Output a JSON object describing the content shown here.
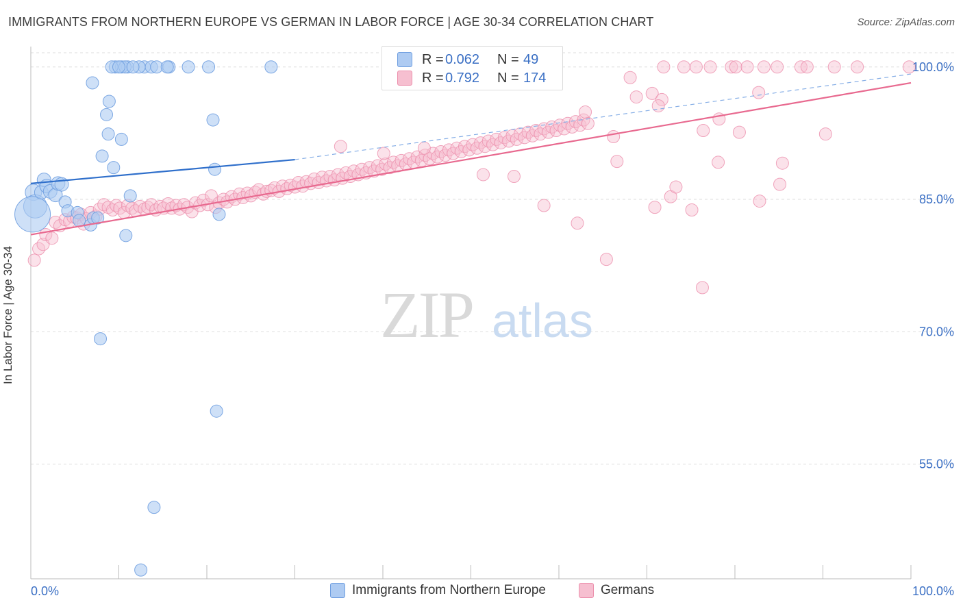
{
  "header": {
    "title": "IMMIGRANTS FROM NORTHERN EUROPE VS GERMAN IN LABOR FORCE | AGE 30-34 CORRELATION CHART",
    "source": "Source: ZipAtlas.com"
  },
  "watermark": {
    "zip": "ZIP",
    "atlas": "atlas"
  },
  "legend": {
    "rows": [
      {
        "r_label": "R =",
        "r_value": "0.062",
        "n_label": "N =",
        "n_value": "49"
      },
      {
        "r_label": "R =",
        "r_value": "0.792",
        "n_label": "N =",
        "n_value": "174"
      }
    ]
  },
  "bottom_legend": {
    "series1": "Immigrants from Northern Europe",
    "series2": "Germans"
  },
  "colors": {
    "blue_fill": "#aecbf2",
    "blue_stroke": "#6f9ee0",
    "blue_line": "#2f6fcb",
    "pink_fill": "#f6bfd0",
    "pink_stroke": "#ec8fac",
    "pink_line": "#e8698f",
    "axis_text": "#3a6fc4",
    "grid": "#dddddd"
  },
  "chart_data": {
    "type": "scatter",
    "title": "IMMIGRANTS FROM NORTHERN EUROPE VS GERMAN IN LABOR FORCE | AGE 30-34 CORRELATION CHART",
    "xlabel": "",
    "ylabel": "In Labor Force | Age 30-34",
    "xlim": [
      0,
      100
    ],
    "ylim": [
      42,
      102
    ],
    "x_tick_labels": [
      "0.0%",
      "100.0%"
    ],
    "y_ticks": [
      55,
      70,
      85,
      100
    ],
    "y_tick_labels": [
      "55.0%",
      "70.0%",
      "85.0%",
      "100.0%"
    ],
    "grid": true,
    "legend_placement": "top-center",
    "series": [
      {
        "name": "Immigrants from Northern Europe",
        "r": 0.062,
        "n": 49,
        "trend": {
          "x": [
            0,
            30
          ],
          "y": [
            86.8,
            89.5
          ],
          "dashed_extension_to": [
            100,
            99.2
          ]
        },
        "points": [
          [
            0.3,
            85.8,
            12
          ],
          [
            0.5,
            84.2,
            17
          ],
          [
            0.2,
            83.3,
            26
          ],
          [
            1.2,
            85.8,
            10
          ],
          [
            1.5,
            87.2,
            10
          ],
          [
            1.8,
            86.5,
            10
          ],
          [
            2.2,
            85.9,
            10
          ],
          [
            2.8,
            85.5,
            10
          ],
          [
            3.1,
            86.8,
            10
          ],
          [
            3.5,
            86.7,
            10
          ],
          [
            3.9,
            84.7,
            9
          ],
          [
            4.2,
            83.7,
            9
          ],
          [
            5.3,
            83.5,
            9
          ],
          [
            5.5,
            82.6,
            9
          ],
          [
            6.8,
            82.1,
            9
          ],
          [
            7.1,
            82.9,
            9
          ],
          [
            7.6,
            82.9,
            9
          ],
          [
            8.1,
            89.9,
            9
          ],
          [
            8.6,
            94.6,
            9
          ],
          [
            8.8,
            92.4,
            9
          ],
          [
            8.9,
            96.1,
            9
          ],
          [
            7.0,
            98.2,
            9
          ],
          [
            9.4,
            88.6,
            9
          ],
          [
            10.3,
            91.8,
            9
          ],
          [
            10.8,
            80.9,
            9
          ],
          [
            11.3,
            85.4,
            9
          ],
          [
            7.9,
            69.2,
            9
          ],
          [
            9.6,
            100,
            9
          ],
          [
            11.0,
            100,
            9
          ],
          [
            10.3,
            100,
            9
          ],
          [
            9.2,
            100,
            9
          ],
          [
            10.7,
            100,
            9
          ],
          [
            12.9,
            100,
            9
          ],
          [
            13.7,
            100,
            9
          ],
          [
            14.3,
            100,
            9
          ],
          [
            15.7,
            100,
            9
          ],
          [
            17.9,
            100,
            9
          ],
          [
            20.2,
            100,
            9
          ],
          [
            27.3,
            100,
            9
          ],
          [
            15.5,
            100,
            9
          ],
          [
            20.9,
            88.4,
            9
          ],
          [
            21.4,
            83.3,
            9
          ],
          [
            20.7,
            94.0,
            9
          ],
          [
            21.1,
            61.0,
            9
          ],
          [
            14.0,
            50.1,
            9
          ],
          [
            12.5,
            43.0,
            9
          ],
          [
            12.3,
            100,
            9
          ],
          [
            10.0,
            100,
            9
          ],
          [
            11.6,
            100,
            9
          ]
        ]
      },
      {
        "name": "Germans",
        "r": 0.792,
        "n": 174,
        "trend": {
          "x": [
            0,
            100
          ],
          "y": [
            81.0,
            98.2
          ]
        },
        "points": [
          [
            0.4,
            78.1
          ],
          [
            0.9,
            79.4
          ],
          [
            1.4,
            79.9
          ],
          [
            1.7,
            81.0
          ],
          [
            2.4,
            80.6
          ],
          [
            2.8,
            82.4
          ],
          [
            3.3,
            82.0
          ],
          [
            3.9,
            82.7
          ],
          [
            4.4,
            82.5
          ],
          [
            4.8,
            83.0
          ],
          [
            5.2,
            82.9
          ],
          [
            5.7,
            83.3
          ],
          [
            6.0,
            82.2
          ],
          [
            6.3,
            82.8
          ],
          [
            6.8,
            83.5
          ],
          [
            7.4,
            83.1
          ],
          [
            7.8,
            83.9
          ],
          [
            8.3,
            84.4
          ],
          [
            8.8,
            84.1
          ],
          [
            9.3,
            83.8
          ],
          [
            9.7,
            84.3
          ],
          [
            10.1,
            84.0
          ],
          [
            10.6,
            83.5
          ],
          [
            11.0,
            84.3
          ],
          [
            11.5,
            84.0
          ],
          [
            11.9,
            83.7
          ],
          [
            12.4,
            84.2
          ],
          [
            12.9,
            83.9
          ],
          [
            13.3,
            84.1
          ],
          [
            13.7,
            84.4
          ],
          [
            14.2,
            83.8
          ],
          [
            14.7,
            84.2
          ],
          [
            15.1,
            84.0
          ],
          [
            15.6,
            84.5
          ],
          [
            16.0,
            84.0
          ],
          [
            16.5,
            84.3
          ],
          [
            16.9,
            83.9
          ],
          [
            17.4,
            84.4
          ],
          [
            17.8,
            84.1
          ],
          [
            18.3,
            83.6
          ],
          [
            18.7,
            84.6
          ],
          [
            19.2,
            84.3
          ],
          [
            19.6,
            84.9
          ],
          [
            20.1,
            84.4
          ],
          [
            20.5,
            85.4
          ],
          [
            21.0,
            84.1
          ],
          [
            21.4,
            84.6
          ],
          [
            21.9,
            85.0
          ],
          [
            22.3,
            84.7
          ],
          [
            22.8,
            85.3
          ],
          [
            23.2,
            85.0
          ],
          [
            23.7,
            85.6
          ],
          [
            24.1,
            85.2
          ],
          [
            24.6,
            85.7
          ],
          [
            25.0,
            85.4
          ],
          [
            25.5,
            85.8
          ],
          [
            25.9,
            86.1
          ],
          [
            26.4,
            85.6
          ],
          [
            26.8,
            85.9
          ],
          [
            27.3,
            86.0
          ],
          [
            27.7,
            86.3
          ],
          [
            28.2,
            85.9
          ],
          [
            28.6,
            86.5
          ],
          [
            29.1,
            86.2
          ],
          [
            29.5,
            86.6
          ],
          [
            30.0,
            86.4
          ],
          [
            30.4,
            86.9
          ],
          [
            30.9,
            86.5
          ],
          [
            31.3,
            87.0
          ],
          [
            31.8,
            86.8
          ],
          [
            32.2,
            87.3
          ],
          [
            32.7,
            86.9
          ],
          [
            33.1,
            87.5
          ],
          [
            33.6,
            87.1
          ],
          [
            34.0,
            87.6
          ],
          [
            34.5,
            87.2
          ],
          [
            34.9,
            87.8
          ],
          [
            35.4,
            87.4
          ],
          [
            35.8,
            88.0
          ],
          [
            36.3,
            87.6
          ],
          [
            36.7,
            88.2
          ],
          [
            37.2,
            87.8
          ],
          [
            37.6,
            88.4
          ],
          [
            38.1,
            88.0
          ],
          [
            38.5,
            88.6
          ],
          [
            39.0,
            88.2
          ],
          [
            39.4,
            88.8
          ],
          [
            39.9,
            88.4
          ],
          [
            40.3,
            89.0
          ],
          [
            40.8,
            88.6
          ],
          [
            41.2,
            89.2
          ],
          [
            41.7,
            88.8
          ],
          [
            42.1,
            89.4
          ],
          [
            42.6,
            89.0
          ],
          [
            43.0,
            89.6
          ],
          [
            43.5,
            89.2
          ],
          [
            43.9,
            89.8
          ],
          [
            44.4,
            89.4
          ],
          [
            44.8,
            90.0
          ],
          [
            45.3,
            89.6
          ],
          [
            45.7,
            90.2
          ],
          [
            46.2,
            89.8
          ],
          [
            46.6,
            90.4
          ],
          [
            47.1,
            90.0
          ],
          [
            47.5,
            90.6
          ],
          [
            48.0,
            90.2
          ],
          [
            48.4,
            90.8
          ],
          [
            48.9,
            90.4
          ],
          [
            49.3,
            91.0
          ],
          [
            49.8,
            90.6
          ],
          [
            50.2,
            91.2
          ],
          [
            50.7,
            90.8
          ],
          [
            51.1,
            91.4
          ],
          [
            51.6,
            91.0
          ],
          [
            52.0,
            91.6
          ],
          [
            52.5,
            91.2
          ],
          [
            52.9,
            91.8
          ],
          [
            53.4,
            91.4
          ],
          [
            53.8,
            92.0
          ],
          [
            54.3,
            91.6
          ],
          [
            54.7,
            92.2
          ],
          [
            55.2,
            91.8
          ],
          [
            55.6,
            92.4
          ],
          [
            56.1,
            92.0
          ],
          [
            56.5,
            92.6
          ],
          [
            57.0,
            92.2
          ],
          [
            57.4,
            92.8
          ],
          [
            57.9,
            92.4
          ],
          [
            58.3,
            93.0
          ],
          [
            58.8,
            92.6
          ],
          [
            59.2,
            93.2
          ],
          [
            59.7,
            92.8
          ],
          [
            60.1,
            93.4
          ],
          [
            60.6,
            93.0
          ],
          [
            61.0,
            93.6
          ],
          [
            61.5,
            93.2
          ],
          [
            61.9,
            93.8
          ],
          [
            62.4,
            93.4
          ],
          [
            62.8,
            94.0
          ],
          [
            63.3,
            93.6
          ],
          [
            35.2,
            91.0
          ],
          [
            40.1,
            90.2
          ],
          [
            44.7,
            90.8
          ],
          [
            51.4,
            87.8
          ],
          [
            54.9,
            87.6
          ],
          [
            58.3,
            84.3
          ],
          [
            62.1,
            82.3
          ],
          [
            65.4,
            78.2
          ],
          [
            66.6,
            89.3
          ],
          [
            68.8,
            96.6
          ],
          [
            70.9,
            84.1
          ],
          [
            72.7,
            85.3
          ],
          [
            73.3,
            86.4
          ],
          [
            75.1,
            83.8
          ],
          [
            76.4,
            92.8
          ],
          [
            78.2,
            94.1
          ],
          [
            80.5,
            92.6
          ],
          [
            82.8,
            84.8
          ],
          [
            85.1,
            86.7
          ],
          [
            76.3,
            75.0
          ],
          [
            68.1,
            98.8
          ],
          [
            70.6,
            97.0
          ],
          [
            71.7,
            96.3
          ],
          [
            82.7,
            97.1
          ],
          [
            85.4,
            89.1
          ],
          [
            90.3,
            92.4
          ],
          [
            66.2,
            92.1
          ],
          [
            78.1,
            89.2
          ],
          [
            71.3,
            95.6
          ],
          [
            63.0,
            94.9
          ],
          [
            71.9,
            100
          ],
          [
            74.2,
            100
          ],
          [
            75.6,
            100
          ],
          [
            77.2,
            100
          ],
          [
            79.6,
            100
          ],
          [
            80.1,
            100
          ],
          [
            81.4,
            100
          ],
          [
            83.3,
            100
          ],
          [
            84.8,
            100
          ],
          [
            87.5,
            100
          ],
          [
            88.2,
            100
          ],
          [
            91.3,
            100
          ],
          [
            93.9,
            100
          ],
          [
            99.8,
            100
          ]
        ]
      }
    ]
  }
}
